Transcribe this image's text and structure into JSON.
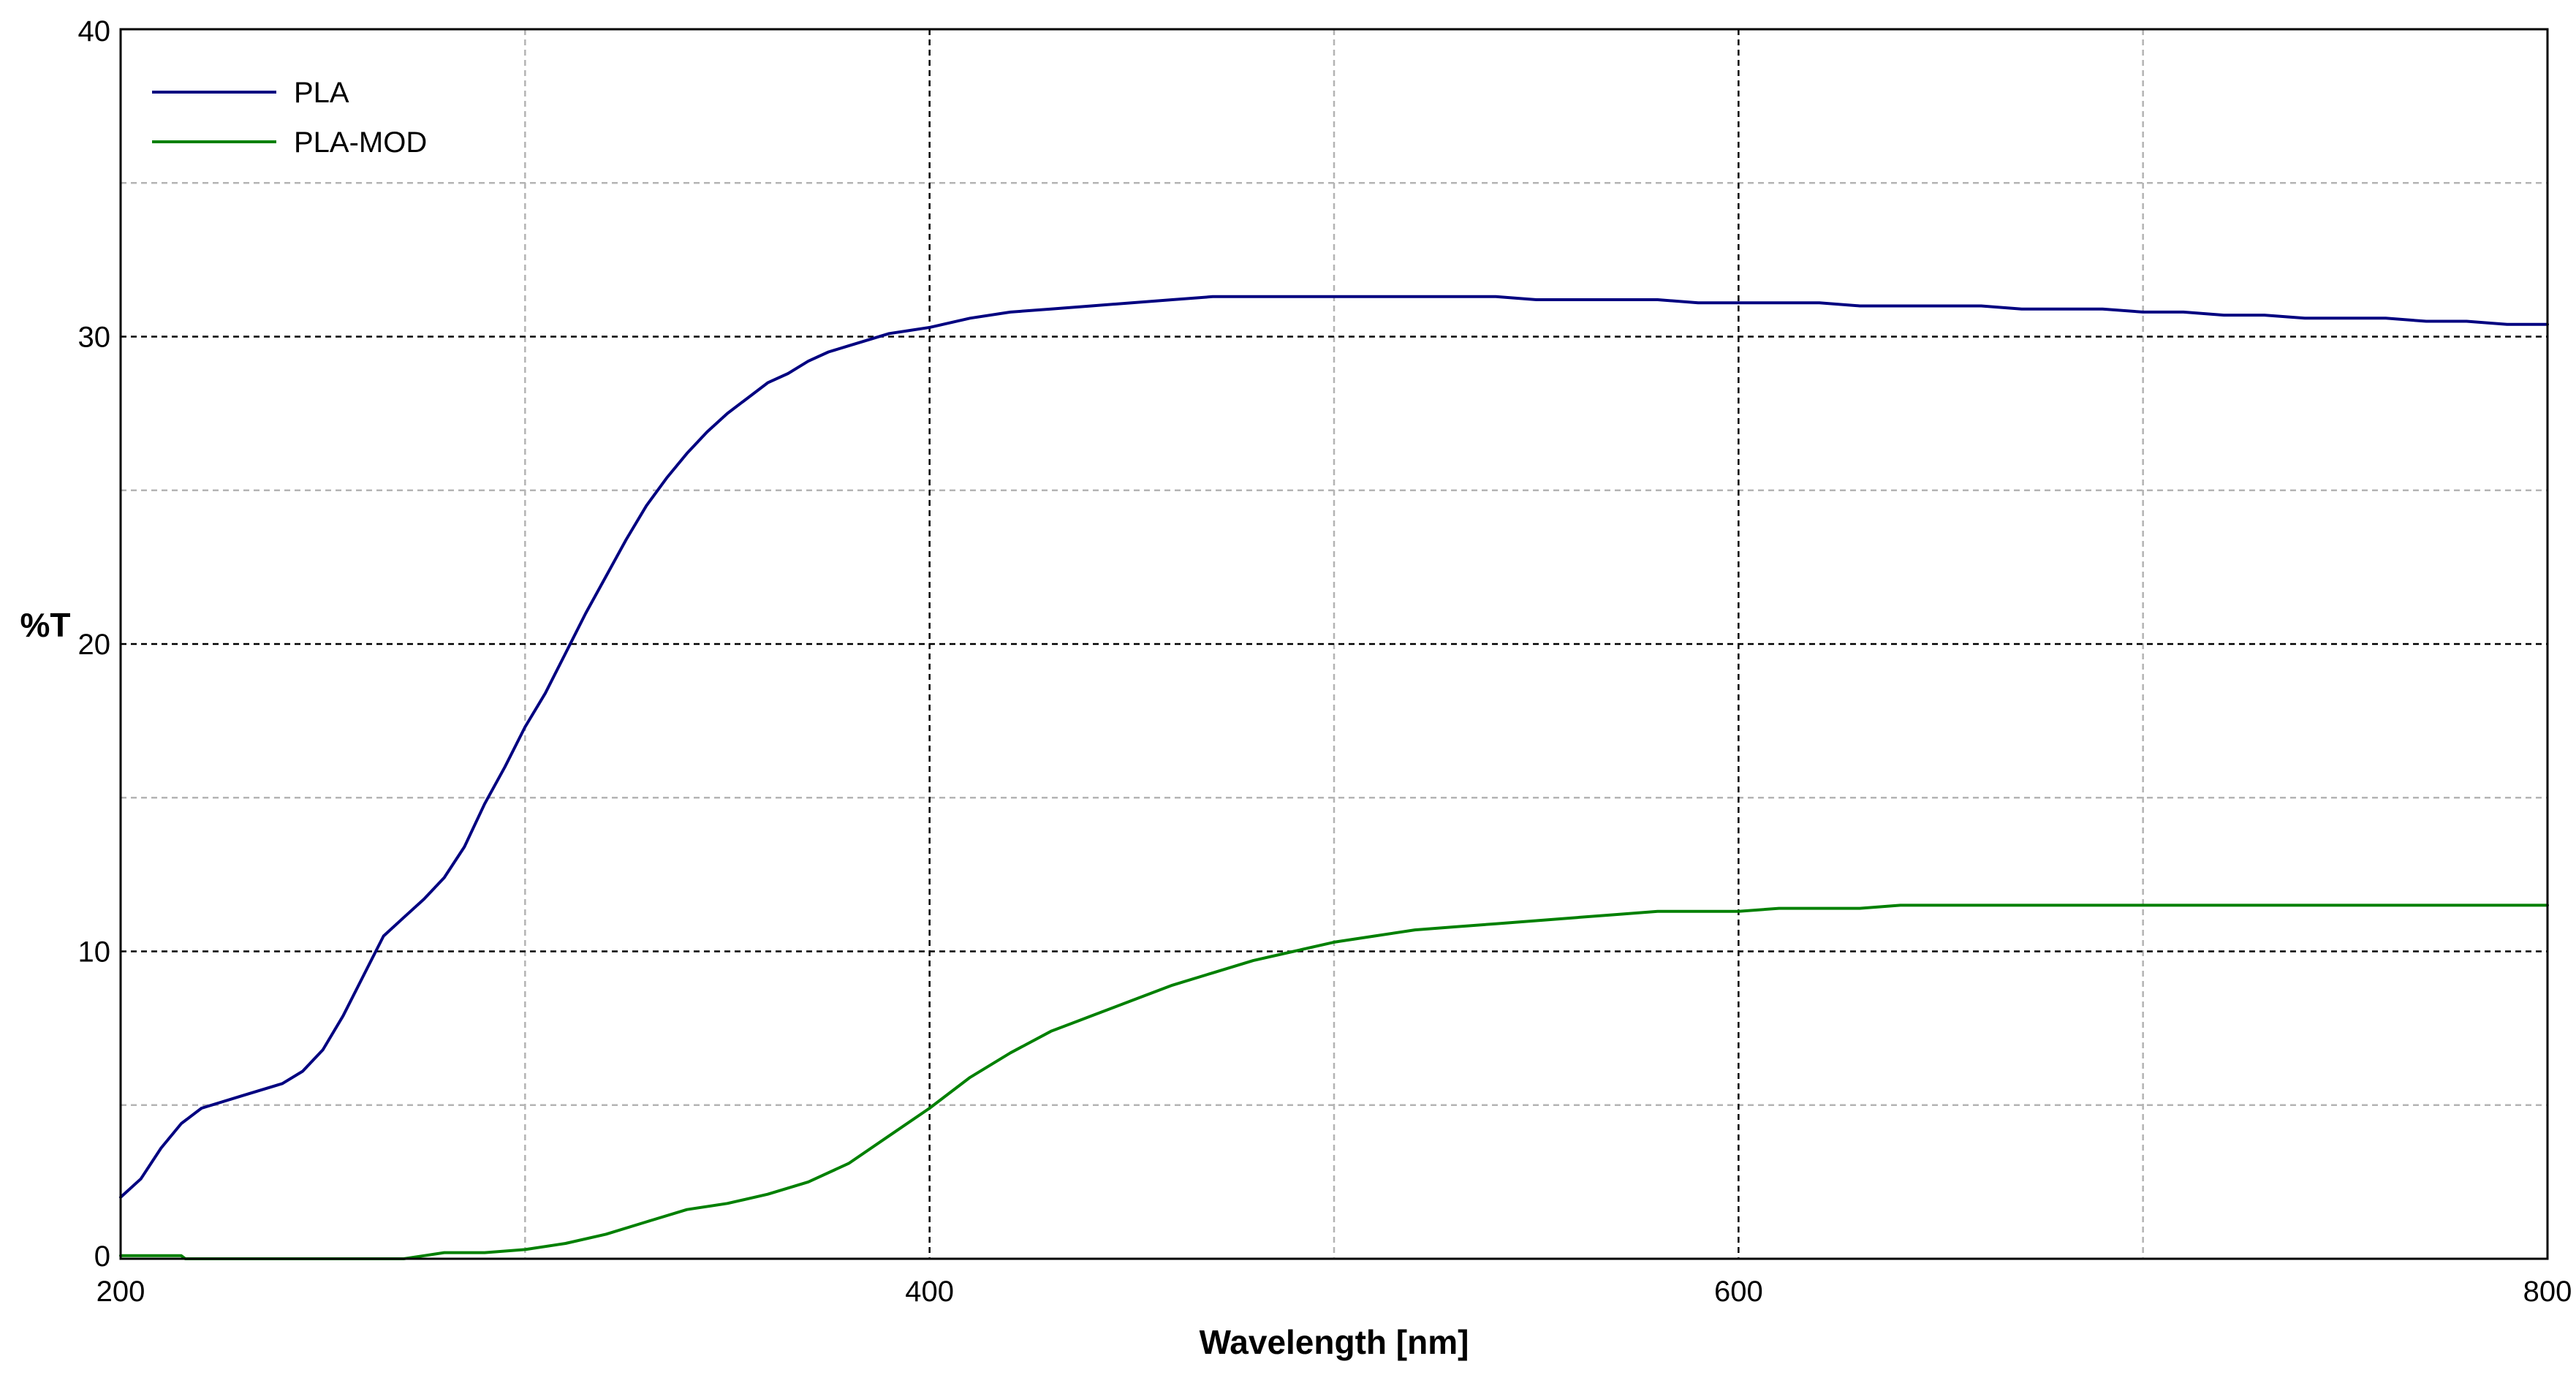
{
  "chart_data": {
    "type": "line",
    "title": "",
    "xlabel": "Wavelength [nm]",
    "ylabel": "%T",
    "xlim": [
      200,
      800
    ],
    "ylim": [
      0,
      40
    ],
    "x_major_ticks": [
      200,
      400,
      600,
      800
    ],
    "x_minor_ticks": [
      300,
      500,
      700
    ],
    "y_major_ticks": [
      0,
      10,
      20,
      30,
      40
    ],
    "y_minor_ticks": [
      5,
      15,
      25,
      35
    ],
    "x_tick_labels": [
      "200",
      "400",
      "600",
      "800"
    ],
    "y_tick_labels": [
      "0",
      "10",
      "20",
      "30",
      "40"
    ],
    "grid": true,
    "legend_position": "top-left",
    "series": [
      {
        "name": "PLA",
        "color": "#000080",
        "points": [
          [
            200,
            2.0
          ],
          [
            205,
            2.6
          ],
          [
            210,
            3.6
          ],
          [
            215,
            4.4
          ],
          [
            220,
            4.9
          ],
          [
            230,
            5.3
          ],
          [
            240,
            5.7
          ],
          [
            245,
            6.1
          ],
          [
            250,
            6.8
          ],
          [
            255,
            7.9
          ],
          [
            260,
            9.2
          ],
          [
            265,
            10.5
          ],
          [
            270,
            11.1
          ],
          [
            275,
            11.7
          ],
          [
            280,
            12.4
          ],
          [
            285,
            13.4
          ],
          [
            290,
            14.8
          ],
          [
            295,
            16.0
          ],
          [
            300,
            17.3
          ],
          [
            305,
            18.4
          ],
          [
            310,
            19.7
          ],
          [
            315,
            21.0
          ],
          [
            320,
            22.2
          ],
          [
            325,
            23.4
          ],
          [
            330,
            24.5
          ],
          [
            335,
            25.4
          ],
          [
            340,
            26.2
          ],
          [
            345,
            26.9
          ],
          [
            350,
            27.5
          ],
          [
            355,
            28.0
          ],
          [
            360,
            28.5
          ],
          [
            365,
            28.8
          ],
          [
            370,
            29.2
          ],
          [
            375,
            29.5
          ],
          [
            380,
            29.7
          ],
          [
            385,
            29.9
          ],
          [
            390,
            30.1
          ],
          [
            395,
            30.2
          ],
          [
            400,
            30.3
          ],
          [
            410,
            30.6
          ],
          [
            420,
            30.8
          ],
          [
            430,
            30.9
          ],
          [
            440,
            31.0
          ],
          [
            450,
            31.1
          ],
          [
            460,
            31.2
          ],
          [
            470,
            31.3
          ],
          [
            480,
            31.3
          ],
          [
            490,
            31.3
          ],
          [
            500,
            31.3
          ],
          [
            510,
            31.3
          ],
          [
            520,
            31.3
          ],
          [
            530,
            31.3
          ],
          [
            540,
            31.3
          ],
          [
            550,
            31.2
          ],
          [
            560,
            31.2
          ],
          [
            570,
            31.2
          ],
          [
            580,
            31.2
          ],
          [
            590,
            31.1
          ],
          [
            600,
            31.1
          ],
          [
            610,
            31.1
          ],
          [
            620,
            31.1
          ],
          [
            630,
            31.0
          ],
          [
            640,
            31.0
          ],
          [
            650,
            31.0
          ],
          [
            660,
            31.0
          ],
          [
            670,
            30.9
          ],
          [
            680,
            30.9
          ],
          [
            690,
            30.9
          ],
          [
            700,
            30.8
          ],
          [
            710,
            30.8
          ],
          [
            720,
            30.7
          ],
          [
            730,
            30.7
          ],
          [
            740,
            30.6
          ],
          [
            750,
            30.6
          ],
          [
            760,
            30.6
          ],
          [
            770,
            30.5
          ],
          [
            780,
            30.5
          ],
          [
            790,
            30.4
          ],
          [
            800,
            30.4
          ]
        ]
      },
      {
        "name": "PLA-MOD",
        "color": "#008000",
        "points": [
          [
            200,
            0.1
          ],
          [
            215,
            0.1
          ],
          [
            216,
            0.0
          ],
          [
            270,
            0.0
          ],
          [
            275,
            0.1
          ],
          [
            280,
            0.2
          ],
          [
            290,
            0.2
          ],
          [
            300,
            0.3
          ],
          [
            310,
            0.5
          ],
          [
            320,
            0.8
          ],
          [
            330,
            1.2
          ],
          [
            340,
            1.6
          ],
          [
            350,
            1.8
          ],
          [
            360,
            2.1
          ],
          [
            370,
            2.5
          ],
          [
            380,
            3.1
          ],
          [
            390,
            4.0
          ],
          [
            400,
            4.9
          ],
          [
            410,
            5.9
          ],
          [
            420,
            6.7
          ],
          [
            430,
            7.4
          ],
          [
            440,
            7.9
          ],
          [
            450,
            8.4
          ],
          [
            460,
            8.9
          ],
          [
            470,
            9.3
          ],
          [
            480,
            9.7
          ],
          [
            490,
            10.0
          ],
          [
            500,
            10.3
          ],
          [
            510,
            10.5
          ],
          [
            520,
            10.7
          ],
          [
            530,
            10.8
          ],
          [
            540,
            10.9
          ],
          [
            550,
            11.0
          ],
          [
            560,
            11.1
          ],
          [
            570,
            11.2
          ],
          [
            580,
            11.3
          ],
          [
            590,
            11.3
          ],
          [
            600,
            11.3
          ],
          [
            610,
            11.4
          ],
          [
            620,
            11.4
          ],
          [
            630,
            11.4
          ],
          [
            640,
            11.5
          ],
          [
            660,
            11.5
          ],
          [
            680,
            11.5
          ],
          [
            700,
            11.5
          ],
          [
            720,
            11.5
          ],
          [
            740,
            11.5
          ],
          [
            760,
            11.5
          ],
          [
            780,
            11.5
          ],
          [
            800,
            11.5
          ]
        ]
      }
    ]
  }
}
